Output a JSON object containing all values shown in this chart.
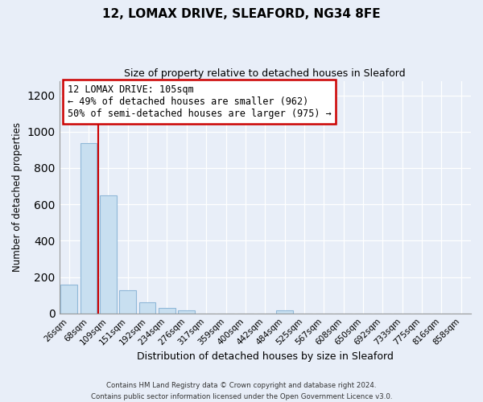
{
  "title": "12, LOMAX DRIVE, SLEAFORD, NG34 8FE",
  "subtitle": "Size of property relative to detached houses in Sleaford",
  "xlabel": "Distribution of detached houses by size in Sleaford",
  "ylabel": "Number of detached properties",
  "footer_line1": "Contains HM Land Registry data © Crown copyright and database right 2024.",
  "footer_line2": "Contains public sector information licensed under the Open Government Licence v3.0.",
  "bin_labels": [
    "26sqm",
    "68sqm",
    "109sqm",
    "151sqm",
    "192sqm",
    "234sqm",
    "276sqm",
    "317sqm",
    "359sqm",
    "400sqm",
    "442sqm",
    "484sqm",
    "525sqm",
    "567sqm",
    "608sqm",
    "650sqm",
    "692sqm",
    "733sqm",
    "775sqm",
    "816sqm",
    "858sqm"
  ],
  "bar_heights": [
    160,
    935,
    650,
    125,
    60,
    28,
    15,
    0,
    0,
    0,
    0,
    15,
    0,
    0,
    0,
    0,
    0,
    0,
    0,
    0,
    0
  ],
  "bar_color": "#c8dff0",
  "bar_edge_color": "#90b8d8",
  "marker_line_color": "#cc0000",
  "annotation_line1": "12 LOMAX DRIVE: 105sqm",
  "annotation_line2": "← 49% of detached houses are smaller (962)",
  "annotation_line3": "50% of semi-detached houses are larger (975) →",
  "annotation_box_color": "#ffffff",
  "annotation_box_edge_color": "#cc0000",
  "ylim": [
    0,
    1280
  ],
  "yticks": [
    0,
    200,
    400,
    600,
    800,
    1000,
    1200
  ],
  "background_color": "#e8eef8",
  "plot_background": "#e8eef8",
  "grid_color": "#ffffff",
  "title_fontsize": 11,
  "subtitle_fontsize": 9
}
